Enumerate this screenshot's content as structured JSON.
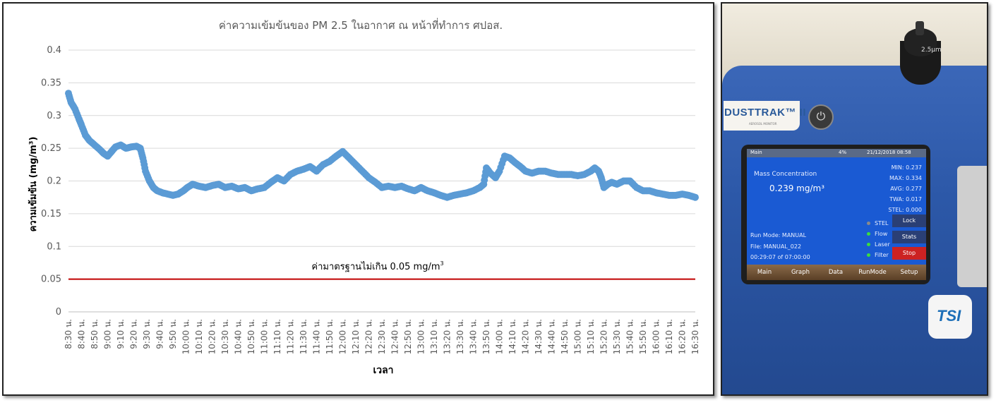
{
  "chart_data": {
    "type": "scatter",
    "title": "ค่าความเข้มข้นของ PM 2.5 ในอากาศ ณ หน้าที่ทำการ ศปอส.",
    "xlabel": "เวลา",
    "ylabel": "ความเข้มข้น (mg/m³)",
    "ylim": [
      0,
      0.4
    ],
    "yticks": [
      "0",
      "0.05",
      "0.1",
      "0.15",
      "0.2",
      "0.25",
      "0.3",
      "0.35",
      "0.4"
    ],
    "xticks": [
      "8:30 น.",
      "8:40 น.",
      "8:50 น.",
      "9:00 น.",
      "9:10 น.",
      "9:20 น.",
      "9:30 น.",
      "9:40 น.",
      "9:50 น.",
      "10:00 น.",
      "10:10 น.",
      "10:20 น.",
      "10:30 น.",
      "10:40 น.",
      "10:50 น.",
      "11:00 น.",
      "11:10 น.",
      "11:20 น.",
      "11:30 น.",
      "11:40 น.",
      "11:50 น.",
      "12:00 น.",
      "12:10 น.",
      "12:20 น.",
      "12:30 น.",
      "12:40 น.",
      "12:50 น.",
      "13:00 น.",
      "13:10 น.",
      "13:20 น.",
      "13:30 น.",
      "13:40 น.",
      "13:50 น.",
      "14:00 น.",
      "14:10 น.",
      "14:20 น.",
      "14:30 น.",
      "14:40 น.",
      "14:50 น.",
      "15:00 น.",
      "15:10 น.",
      "15:20 น.",
      "15:30 น.",
      "15:40 น.",
      "15:50 น.",
      "16:00 น.",
      "16:10 น.",
      "16:20 น.",
      "16:30 น."
    ],
    "grid": true,
    "series": [
      {
        "color": "#5b9bd5",
        "x": [
          "8:30 น.",
          "8:32 น.",
          "8:35 น.",
          "8:38 น.",
          "8:40 น.",
          "8:43 น.",
          "8:46 น.",
          "8:50 น.",
          "8:54 น.",
          "8:57 น.",
          "9:00 น.",
          "9:03 น.",
          "9:06 น.",
          "9:10 น.",
          "9:14 น.",
          "9:18 น.",
          "9:22 น.",
          "9:25 น.",
          "9:27 น.",
          "9:29 น.",
          "9:32 น.",
          "9:35 น.",
          "9:38 น.",
          "9:42 น.",
          "9:46 น.",
          "9:50 น.",
          "9:54 น.",
          "9:58 น.",
          "10:01 น.",
          "10:05 น.",
          "10:10 น.",
          "10:15 น.",
          "10:20 น.",
          "10:25 น.",
          "10:30 น.",
          "10:35 น.",
          "10:40 น.",
          "10:45 น.",
          "10:50 น.",
          "10:55 น.",
          "11:00 น.",
          "11:05 น.",
          "11:10 น.",
          "11:15 น.",
          "11:20 น.",
          "11:25 น.",
          "11:30 น.",
          "11:35 น.",
          "11:40 น.",
          "11:45 น.",
          "11:50 น.",
          "11:55 น.",
          "12:00 น.",
          "12:05 น.",
          "12:10 น.",
          "12:15 น.",
          "12:20 น.",
          "12:25 น.",
          "12:30 น.",
          "12:35 น.",
          "12:40 น.",
          "12:45 น.",
          "12:50 น.",
          "12:55 น.",
          "13:00 น.",
          "13:05 น.",
          "13:10 น.",
          "13:15 น.",
          "13:20 น.",
          "13:25 น.",
          "13:30 น.",
          "13:35 น.",
          "13:40 น.",
          "13:45 น.",
          "13:48 น.",
          "13:50 น.",
          "13:53 น.",
          "13:57 น.",
          "14:00 น.",
          "14:04 น.",
          "14:08 น.",
          "14:12 น.",
          "14:16 น.",
          "14:20 น.",
          "14:25 น.",
          "14:30 น.",
          "14:35 น.",
          "14:40 น.",
          "14:45 น.",
          "14:50 น.",
          "14:55 น.",
          "15:00 น.",
          "15:05 น.",
          "15:10 น.",
          "15:13 น.",
          "15:16 น.",
          "15:18 น.",
          "15:20 น.",
          "15:23 น.",
          "15:26 น.",
          "15:30 น.",
          "15:35 น.",
          "15:40 น.",
          "15:45 น.",
          "15:50 น.",
          "15:55 น.",
          "16:00 น.",
          "16:05 น.",
          "16:10 น.",
          "16:15 น.",
          "16:20 น.",
          "16:25 น.",
          "16:30 น."
        ],
        "values": [
          0.334,
          0.32,
          0.31,
          0.295,
          0.285,
          0.27,
          0.262,
          0.255,
          0.248,
          0.242,
          0.238,
          0.245,
          0.252,
          0.255,
          0.25,
          0.252,
          0.253,
          0.25,
          0.235,
          0.215,
          0.2,
          0.19,
          0.185,
          0.182,
          0.18,
          0.178,
          0.18,
          0.185,
          0.19,
          0.195,
          0.192,
          0.19,
          0.193,
          0.195,
          0.19,
          0.192,
          0.188,
          0.19,
          0.185,
          0.188,
          0.19,
          0.198,
          0.205,
          0.2,
          0.21,
          0.215,
          0.218,
          0.222,
          0.215,
          0.225,
          0.23,
          0.238,
          0.245,
          0.235,
          0.225,
          0.215,
          0.205,
          0.198,
          0.19,
          0.192,
          0.19,
          0.192,
          0.188,
          0.185,
          0.19,
          0.185,
          0.182,
          0.178,
          0.175,
          0.178,
          0.18,
          0.182,
          0.185,
          0.19,
          0.195,
          0.22,
          0.212,
          0.205,
          0.215,
          0.238,
          0.235,
          0.228,
          0.222,
          0.215,
          0.212,
          0.215,
          0.215,
          0.212,
          0.21,
          0.21,
          0.21,
          0.208,
          0.21,
          0.215,
          0.22,
          0.215,
          0.205,
          0.19,
          0.195,
          0.198,
          0.195,
          0.2,
          0.2,
          0.19,
          0.185,
          0.185,
          0.182,
          0.18,
          0.178,
          0.178,
          0.18,
          0.178,
          0.175
        ]
      }
    ],
    "reference_line": {
      "value": 0.05,
      "label_main": "ค่ามาตรฐานไม่เกิน 0.05 mg/m",
      "label_sup": "3",
      "color": "#c00000"
    }
  },
  "device": {
    "knob_text": "2.5μm",
    "brand": "DUSTTRAK™ II",
    "brand_sub": "AEROSOL MONITOR",
    "topbar": {
      "left": "Main",
      "battery": "4%",
      "datetime": "21/12/2018 08:58"
    },
    "mass_label": "Mass Concentration",
    "mass_value": "0.239 mg/m³",
    "stats": {
      "min": "MIN: 0.237",
      "max": "MAX: 0.334",
      "avg": "AVG: 0.277",
      "twa": "TWA: 0.017",
      "stel": "STEL: 0.000"
    },
    "indicators": [
      {
        "label": "STEL",
        "color": "#8a8a8a"
      },
      {
        "label": "Flow",
        "color": "#3ddc3d"
      },
      {
        "label": "Laser",
        "color": "#3ddc3d"
      },
      {
        "label": "Filter",
        "color": "#3ddc3d"
      }
    ],
    "buttons": {
      "lock": "Lock",
      "stats": "Stats",
      "stop": "Stop"
    },
    "run_mode": "Run Mode: MANUAL",
    "file": "File: MANUAL_022",
    "elapsed": "00:29:07 of 07:00:00",
    "nav": [
      "Main",
      "Graph",
      "Data",
      "RunMode",
      "Setup"
    ],
    "tsi_logo": "TSI"
  }
}
